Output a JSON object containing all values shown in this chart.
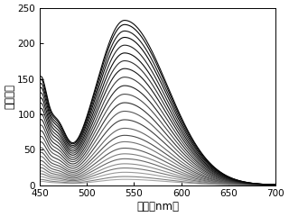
{
  "x_min": 450,
  "x_max": 700,
  "y_min": 0,
  "y_max": 250,
  "peak_wavelength": 540,
  "xlabel": "波长（nm）",
  "ylabel": "荧光强度",
  "xticks": [
    450,
    500,
    550,
    600,
    650,
    700
  ],
  "yticks": [
    0,
    50,
    100,
    150,
    200,
    250
  ],
  "num_curves": 25,
  "bg_color": "#ffffff",
  "peak_heights": [
    8,
    12,
    18,
    24,
    30,
    37,
    44,
    52,
    61,
    70,
    80,
    92,
    104,
    116,
    128,
    140,
    152,
    164,
    175,
    186,
    197,
    208,
    217,
    226,
    232
  ],
  "line_width": 0.8
}
